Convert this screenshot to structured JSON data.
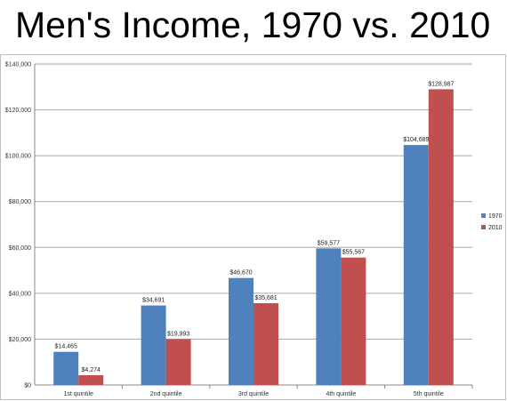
{
  "title": "Men's Income, 1970 vs. 2010",
  "chart_data": {
    "type": "bar",
    "title": "",
    "xlabel": "",
    "ylabel": "",
    "categories": [
      "1st quintile",
      "2nd quintile",
      "3rd quintile",
      "4th quintile",
      "5th quintile"
    ],
    "series": [
      {
        "name": "1970",
        "color": "#4f81bd",
        "values": [
          14465,
          34691,
          46670,
          59577,
          104689
        ],
        "labels": [
          "$14,465",
          "$34,691",
          "$46,670",
          "$59,577",
          "$104,689"
        ]
      },
      {
        "name": "2010",
        "color": "#c0504d",
        "values": [
          4274,
          19993,
          35681,
          55567,
          128987
        ],
        "labels": [
          "$4,274",
          "$19,993",
          "$35,681",
          "$55,567",
          "$128,987"
        ]
      }
    ],
    "ylim": [
      0,
      140000
    ],
    "yticks": [
      0,
      20000,
      40000,
      60000,
      80000,
      100000,
      120000,
      140000
    ],
    "ytick_labels": [
      "$0",
      "$20,000",
      "$40,000",
      "$60,000",
      "$80,000",
      "$100,000",
      "$120,000",
      "$140,000"
    ],
    "grid": true,
    "legend_position": "right"
  }
}
